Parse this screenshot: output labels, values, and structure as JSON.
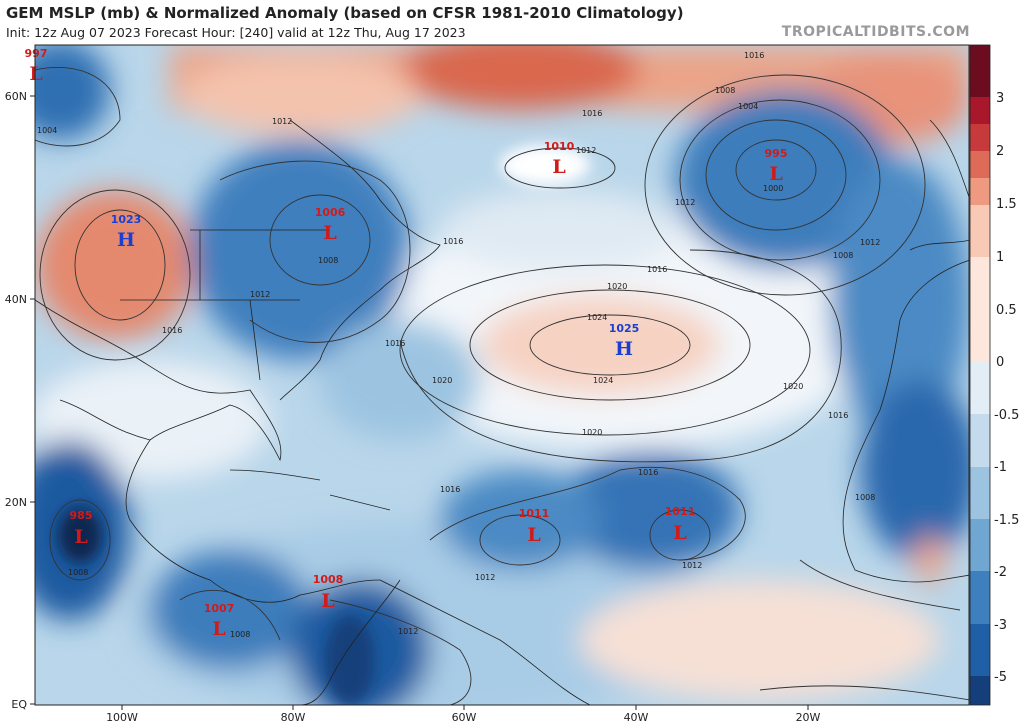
{
  "header": {
    "title": "GEM MSLP (mb) & Normalized Anomaly (based on CFSR 1981-2010 Climatology)",
    "subtitle": "Init: 12z Aug 07 2023   Forecast Hour: [240]   valid at 12z Thu, Aug 17 2023",
    "watermark": "TROPICALTIDBITS.COM"
  },
  "map": {
    "lat_ticks": [
      "60N",
      "40N",
      "20N",
      "EQ"
    ],
    "lon_ticks": [
      "100W",
      "80W",
      "60W",
      "40W",
      "20W"
    ]
  },
  "colorbar": {
    "ticks": [
      "3",
      "2",
      "1.5",
      "1",
      "0.5",
      "0",
      "-0.5",
      "-1",
      "-1.5",
      "-2",
      "-3",
      "-5"
    ],
    "colors": {
      "pos": [
        "#6b0d1f",
        "#a8182a",
        "#c73a3b",
        "#dd6b58",
        "#ee9a80",
        "#f8c9b4",
        "#fde6dc"
      ],
      "neg": [
        "#e3edf6",
        "#c3dbec",
        "#9cc4e1",
        "#6fa6d2",
        "#3e80be",
        "#1f5fa6",
        "#143f7a",
        "#0d2650"
      ]
    }
  },
  "pressure_centers": [
    {
      "type": "L",
      "value": "997",
      "color": "#d11a1a"
    },
    {
      "type": "H",
      "value": "1023",
      "color": "#1a3fd1"
    },
    {
      "type": "L",
      "value": "1006",
      "color": "#d11a1a"
    },
    {
      "type": "L",
      "value": "1010",
      "color": "#d11a1a"
    },
    {
      "type": "L",
      "value": "995",
      "color": "#d11a1a"
    },
    {
      "type": "H",
      "value": "1025",
      "color": "#1a3fd1"
    },
    {
      "type": "L",
      "value": "985",
      "color": "#d11a1a"
    },
    {
      "type": "L",
      "value": "1011",
      "color": "#d11a1a"
    },
    {
      "type": "L",
      "value": "1011",
      "color": "#d11a1a"
    },
    {
      "type": "L",
      "value": "1008",
      "color": "#d11a1a"
    },
    {
      "type": "L",
      "value": "1007",
      "color": "#d11a1a"
    }
  ],
  "contour_labels": [
    "1020",
    "1016",
    "1012",
    "1008",
    "1004",
    "1000",
    "1024"
  ]
}
